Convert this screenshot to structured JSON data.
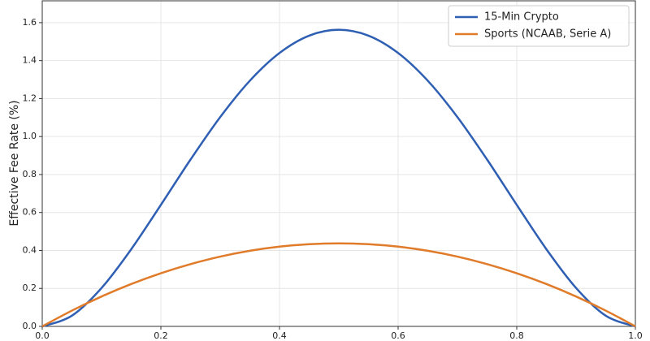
{
  "chart_data": {
    "type": "line",
    "ylabel": "Effective Fee Rate (%)",
    "x": [
      0,
      0.05,
      0.1,
      0.15,
      0.2,
      0.25,
      0.3,
      0.35,
      0.4,
      0.45,
      0.5,
      0.55,
      0.6,
      0.65,
      0.7,
      0.75,
      0.8,
      0.85,
      0.9,
      0.95,
      1
    ],
    "series": [
      {
        "name": "15-Min Crypto",
        "color": "#2f5fb3",
        "values": [
          0,
          0.0564,
          0.2025,
          0.4064,
          0.64,
          0.8789,
          1.1025,
          1.2939,
          1.44,
          1.5314,
          1.5625,
          1.5314,
          1.44,
          1.2939,
          1.1025,
          0.8789,
          0.64,
          0.4064,
          0.2025,
          0.0564,
          0
        ]
      },
      {
        "name": "Sports (NCAAB, Serie A)",
        "color": "#e07b2a",
        "values": [
          0,
          0.0831,
          0.1575,
          0.2231,
          0.28,
          0.3281,
          0.3675,
          0.3981,
          0.42,
          0.4331,
          0.4375,
          0.4331,
          0.42,
          0.3981,
          0.3675,
          0.3281,
          0.28,
          0.2231,
          0.1575,
          0.0831,
          0
        ]
      }
    ],
    "xlim": [
      0,
      1
    ],
    "xticks": [
      {
        "value": 0,
        "label": "0.0"
      },
      0.2,
      0.4,
      0.6,
      0.8,
      {
        "value": 1,
        "label": "1.0"
      }
    ],
    "ylim": [
      0,
      1.715
    ],
    "yticks": [
      {
        "value": 0,
        "label": "0.0"
      },
      0.2,
      0.4,
      0.6,
      0.8,
      {
        "value": 1,
        "label": "1.0"
      },
      1.2,
      1.4,
      1.6
    ],
    "grid": true,
    "legend": "upper right"
  }
}
